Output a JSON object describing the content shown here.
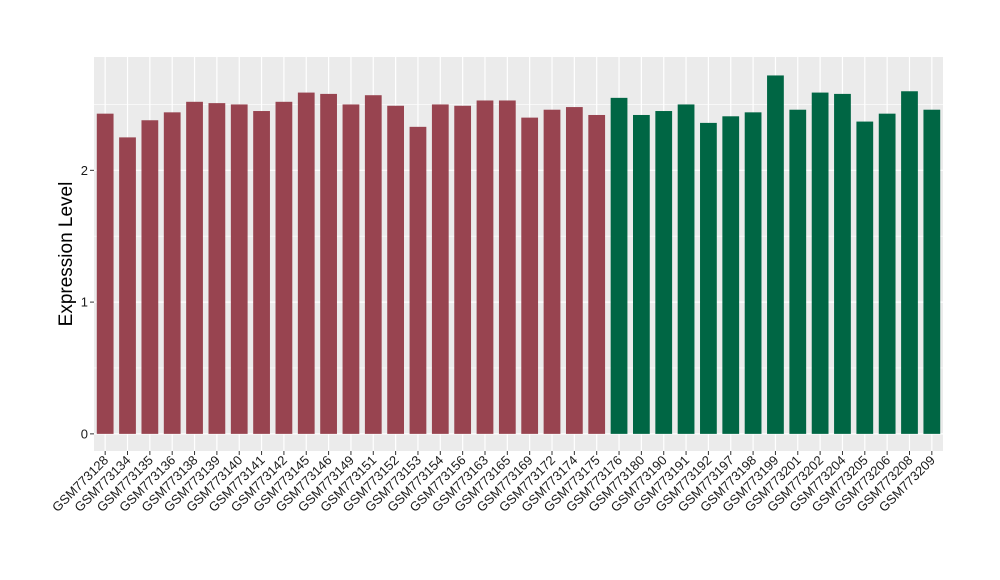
{
  "chart_data": {
    "type": "bar",
    "title": "",
    "xlabel": "",
    "ylabel": "Expression Level",
    "ylim": [
      -0.13,
      2.86
    ],
    "yticks": [
      0,
      1,
      2
    ],
    "grid": true,
    "legend": "none",
    "categories": [
      "GSM773128",
      "GSM773134",
      "GSM773135",
      "GSM773136",
      "GSM773138",
      "GSM773139",
      "GSM773140",
      "GSM773141",
      "GSM773142",
      "GSM773145",
      "GSM773146",
      "GSM773149",
      "GSM773151",
      "GSM773152",
      "GSM773153",
      "GSM773154",
      "GSM773156",
      "GSM773163",
      "GSM773165",
      "GSM773169",
      "GSM773172",
      "GSM773174",
      "GSM773175",
      "GSM773176",
      "GSM773180",
      "GSM773190",
      "GSM773191",
      "GSM773192",
      "GSM773197",
      "GSM773198",
      "GSM773199",
      "GSM773201",
      "GSM773202",
      "GSM773204",
      "GSM773205",
      "GSM773206",
      "GSM773208",
      "GSM773209"
    ],
    "values": [
      2.43,
      2.25,
      2.38,
      2.44,
      2.52,
      2.51,
      2.5,
      2.45,
      2.52,
      2.59,
      2.58,
      2.5,
      2.57,
      2.49,
      2.33,
      2.5,
      2.49,
      2.53,
      2.53,
      2.4,
      2.46,
      2.48,
      2.42,
      2.55,
      2.42,
      2.45,
      2.5,
      2.36,
      2.41,
      2.44,
      2.72,
      2.46,
      2.59,
      2.58,
      2.37,
      2.43,
      2.6,
      2.46
    ],
    "group_sizes": [
      23,
      15
    ],
    "colors": [
      "#984450",
      "#006644"
    ],
    "panel_background": "#ebebeb",
    "grid_color": "#ffffff"
  }
}
